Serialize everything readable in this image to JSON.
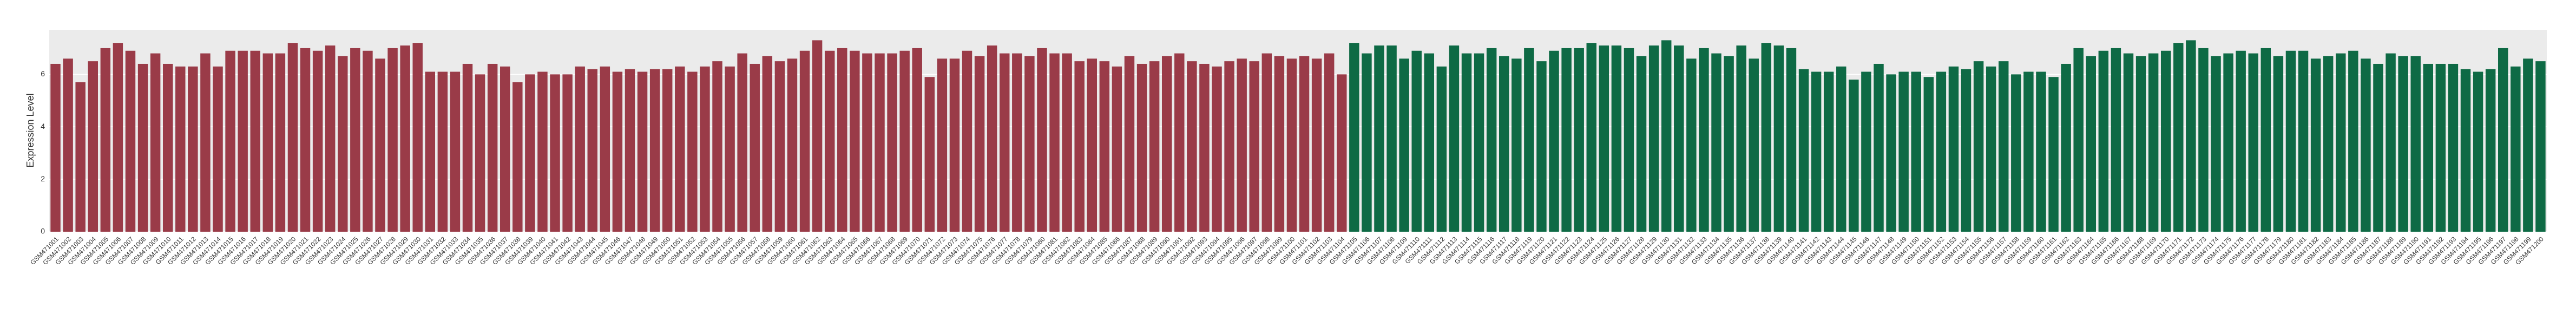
{
  "chart_data": {
    "type": "bar",
    "y_label": "Expression Level",
    "ylim": [
      0,
      7.7
    ],
    "yticks": [
      0,
      2,
      4,
      6
    ],
    "grid": true,
    "series": [
      {
        "color": "#9a3b48",
        "categories": [
          "GSM471001",
          "GSM471002",
          "GSM471003",
          "GSM471004",
          "GSM471005",
          "GSM471006",
          "GSM471007",
          "GSM471008",
          "GSM471009",
          "GSM471010",
          "GSM471011",
          "GSM471012",
          "GSM471013",
          "GSM471014",
          "GSM471015",
          "GSM471016",
          "GSM471017",
          "GSM471018",
          "GSM471019",
          "GSM471020",
          "GSM471021",
          "GSM471022",
          "GSM471023",
          "GSM471024",
          "GSM471025",
          "GSM471026",
          "GSM471027",
          "GSM471028",
          "GSM471029",
          "GSM471030",
          "GSM471031",
          "GSM471032",
          "GSM471033",
          "GSM471034",
          "GSM471035",
          "GSM471036",
          "GSM471037",
          "GSM471038",
          "GSM471039",
          "GSM471040",
          "GSM471041",
          "GSM471042",
          "GSM471043",
          "GSM471044",
          "GSM471045",
          "GSM471046",
          "GSM471047",
          "GSM471048",
          "GSM471049",
          "GSM471050",
          "GSM471051",
          "GSM471052",
          "GSM471053",
          "GSM471054",
          "GSM471055",
          "GSM471056",
          "GSM471057",
          "GSM471058",
          "GSM471059",
          "GSM471060",
          "GSM471061",
          "GSM471062",
          "GSM471063",
          "GSM471064",
          "GSM471065",
          "GSM471066",
          "GSM471067",
          "GSM471068",
          "GSM471069",
          "GSM471070",
          "GSM471071",
          "GSM471072",
          "GSM471073",
          "GSM471074",
          "GSM471075",
          "GSM471076",
          "GSM471077",
          "GSM471078",
          "GSM471079",
          "GSM471080",
          "GSM471081",
          "GSM471082",
          "GSM471083",
          "GSM471084",
          "GSM471085",
          "GSM471086",
          "GSM471087",
          "GSM471088",
          "GSM471089",
          "GSM471090",
          "GSM471091",
          "GSM471092",
          "GSM471093",
          "GSM471094",
          "GSM471095",
          "GSM471096",
          "GSM471097",
          "GSM471098",
          "GSM471099",
          "GSM471100",
          "GSM471101",
          "GSM471102",
          "GSM471103",
          "GSM471104"
        ],
        "values": [
          6.4,
          6.6,
          5.7,
          6.5,
          7.0,
          7.2,
          6.9,
          6.4,
          6.8,
          6.4,
          6.3,
          6.3,
          6.8,
          6.3,
          6.9,
          6.9,
          6.9,
          6.8,
          6.8,
          7.2,
          7.0,
          6.9,
          7.1,
          6.7,
          7.0,
          6.9,
          6.6,
          7.0,
          7.1,
          7.2,
          6.1,
          6.1,
          6.1,
          6.4,
          6.0,
          6.4,
          6.3,
          5.7,
          6.0,
          6.1,
          6.0,
          6.0,
          6.3,
          6.2,
          6.3,
          6.1,
          6.2,
          6.1,
          6.2,
          6.2,
          6.3,
          6.1,
          6.3,
          6.5,
          6.3,
          6.8,
          6.4,
          6.7,
          6.5,
          6.6,
          6.9,
          7.3,
          6.9,
          7.0,
          6.9,
          6.8,
          6.8,
          6.8,
          6.9,
          7.0,
          5.9,
          6.6,
          6.6,
          6.9,
          6.7,
          7.1,
          6.8,
          6.8,
          6.7,
          7.0,
          6.8,
          6.8,
          6.5,
          6.6,
          6.5,
          6.3,
          6.7,
          6.4,
          6.5,
          6.7,
          6.8,
          6.5,
          6.4,
          6.3,
          6.5,
          6.6,
          6.5,
          6.8,
          6.7,
          6.6,
          6.7,
          6.6,
          6.8,
          6.0
        ]
      },
      {
        "color": "#0e6a45",
        "categories": [
          "GSM471105",
          "GSM471106",
          "GSM471107",
          "GSM471108",
          "GSM471109",
          "GSM471110",
          "GSM471111",
          "GSM471112",
          "GSM471113",
          "GSM471114",
          "GSM471115",
          "GSM471116",
          "GSM471117",
          "GSM471118",
          "GSM471119",
          "GSM471120",
          "GSM471121",
          "GSM471122",
          "GSM471123",
          "GSM471124",
          "GSM471125",
          "GSM471126",
          "GSM471127",
          "GSM471128",
          "GSM471129",
          "GSM471130",
          "GSM471131",
          "GSM471132",
          "GSM471133",
          "GSM471134",
          "GSM471135",
          "GSM471136",
          "GSM471137",
          "GSM471138",
          "GSM471139",
          "GSM471140",
          "GSM471141",
          "GSM471142",
          "GSM471143",
          "GSM471144",
          "GSM471145",
          "GSM471146",
          "GSM471147",
          "GSM471148",
          "GSM471149",
          "GSM471150",
          "GSM471151",
          "GSM471152",
          "GSM471153",
          "GSM471154",
          "GSM471155",
          "GSM471156",
          "GSM471157",
          "GSM471158",
          "GSM471159",
          "GSM471160",
          "GSM471161",
          "GSM471162",
          "GSM471163",
          "GSM471164",
          "GSM471165",
          "GSM471166",
          "GSM471167",
          "GSM471168",
          "GSM471169",
          "GSM471170",
          "GSM471171",
          "GSM471172",
          "GSM471173",
          "GSM471174",
          "GSM471175",
          "GSM471176",
          "GSM471177",
          "GSM471178",
          "GSM471179",
          "GSM471180",
          "GSM471181",
          "GSM471182",
          "GSM471183",
          "GSM471184",
          "GSM471185",
          "GSM471186",
          "GSM471187",
          "GSM471188",
          "GSM471189",
          "GSM471190",
          "GSM471191",
          "GSM471192",
          "GSM471193",
          "GSM471194",
          "GSM471195",
          "GSM471196",
          "GSM471197",
          "GSM471198",
          "GSM471199",
          "GSM471200"
        ],
        "values": [
          7.2,
          6.8,
          7.1,
          7.1,
          6.6,
          6.9,
          6.8,
          6.3,
          7.1,
          6.8,
          6.8,
          7.0,
          6.7,
          6.6,
          7.0,
          6.5,
          6.9,
          7.0,
          7.0,
          7.2,
          7.1,
          7.1,
          7.0,
          6.7,
          7.1,
          7.3,
          7.1,
          6.6,
          7.0,
          6.8,
          6.7,
          7.1,
          6.6,
          7.2,
          7.1,
          7.0,
          6.2,
          6.1,
          6.1,
          6.3,
          5.8,
          6.1,
          6.4,
          6.0,
          6.1,
          6.1,
          5.9,
          6.1,
          6.3,
          6.2,
          6.5,
          6.3,
          6.5,
          6.0,
          6.1,
          6.1,
          5.9,
          6.4,
          7.0,
          6.7,
          6.9,
          7.0,
          6.8,
          6.7,
          6.8,
          6.9,
          7.2,
          7.3,
          7.0,
          6.7,
          6.8,
          6.9,
          6.8,
          7.0,
          6.7,
          6.9,
          6.9,
          6.6,
          6.7,
          6.8,
          6.9,
          6.6,
          6.4,
          6.8,
          6.7,
          6.7,
          6.4,
          6.4,
          6.4,
          6.2,
          6.1,
          6.2,
          7.0,
          6.3,
          6.6,
          6.5
        ]
      }
    ]
  }
}
